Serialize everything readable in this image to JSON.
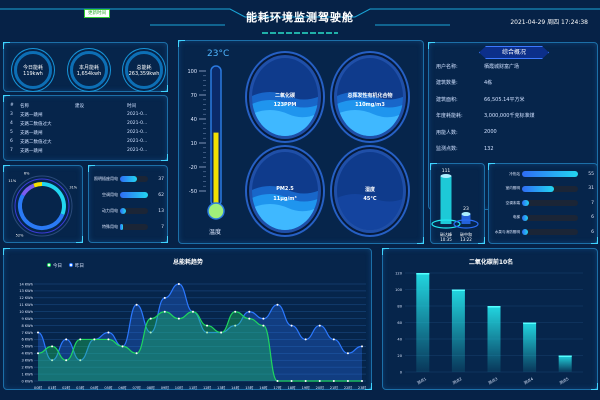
{
  "header": {
    "title": "能耗环境监测驾驶舱",
    "datetime": "2021-04-29 周四 17:24:38",
    "badge": "更新时间"
  },
  "gauges": [
    {
      "label": "今日能耗",
      "value": "119kwh"
    },
    {
      "label": "本月能耗",
      "value": "1,654kwh"
    },
    {
      "label": "总能耗",
      "value": "263,359kwh"
    }
  ],
  "alarm_table": {
    "columns": [
      "#",
      "名称",
      "建设",
      "时间"
    ],
    "rows": [
      [
        "3",
        "支路一跳闸",
        "",
        "2021-0..."
      ],
      [
        "4",
        "支路二数值过大",
        "",
        "2021-0..."
      ],
      [
        "5",
        "支路一跳闸",
        "",
        "2021-0..."
      ],
      [
        "6",
        "支路二数值过大",
        "",
        "2021-0..."
      ],
      [
        "7",
        "支路一跳闸",
        "",
        "2021-0..."
      ]
    ]
  },
  "usage": {
    "items": [
      {
        "label": "照明插座用电",
        "value": 37,
        "pct": "31%",
        "color": "#22d6f0"
      },
      {
        "label": "空调用电",
        "value": 62,
        "pct": "52%",
        "color": "#2a7af5"
      },
      {
        "label": "动力用电",
        "value": 13,
        "pct": "11%",
        "color": "#7b5cf0"
      },
      {
        "label": "特殊用电",
        "value": 7,
        "pct": "6%",
        "color": "#f5e000"
      }
    ],
    "max": 62
  },
  "environment": {
    "temperature": {
      "value": 23,
      "display": "23°C",
      "label": "温度",
      "scale": [
        "100",
        "70",
        "40",
        "10",
        "-20",
        "-50"
      ],
      "min": -50,
      "max": 100
    },
    "sensors": [
      {
        "label": "二氧化碳",
        "value": "123PPM",
        "level": 0.55
      },
      {
        "label": "总挥发性有机化合物",
        "value": "110mg/m3",
        "level": 0.55
      },
      {
        "label": "PM2.5",
        "value": "11μg/m³",
        "level": 0.55
      },
      {
        "label": "湿度",
        "value": "45°C",
        "level": 0.5
      }
    ]
  },
  "overview": {
    "title": "综合概况",
    "rows": [
      {
        "k": "用户名称:",
        "v": "栖霞城财富广场"
      },
      {
        "k": "建筑数量:",
        "v": "4栋"
      },
      {
        "k": "建筑面积:",
        "v": "66,505.14平方米"
      },
      {
        "k": "年度耗能耗:",
        "v": "3,000,000千克标准煤"
      },
      {
        "k": "用能人数:",
        "v": "2000"
      },
      {
        "k": "监测点数:",
        "v": "132"
      }
    ]
  },
  "carbon": [
    {
      "value": "111",
      "label": "碳达峰",
      "time": "10:35",
      "color": "#22e6f0"
    },
    {
      "value": "23",
      "label": "碳中和",
      "time": "13:22",
      "color": "#2a6cf5"
    }
  ],
  "subsystems": {
    "max": 55,
    "items": [
      {
        "label": "冷热站",
        "value": 55
      },
      {
        "label": "室内照明",
        "value": 31
      },
      {
        "label": "空调末端",
        "value": 7
      },
      {
        "label": "电梯",
        "value": 6
      },
      {
        "label": "水泵与消防照明",
        "value": 6
      }
    ]
  },
  "chart_data": [
    {
      "type": "line",
      "title": "总能耗趋势",
      "ylim": [
        0,
        14
      ],
      "yunit": "KWh",
      "categories": [
        "00时",
        "01时",
        "02时",
        "03时",
        "04时",
        "05时",
        "06时",
        "07时",
        "08时",
        "09时",
        "10时",
        "11时",
        "12时",
        "13时",
        "14时",
        "15时",
        "16时",
        "17时",
        "18时",
        "19时",
        "20时",
        "21时",
        "22时",
        "23时"
      ],
      "series": [
        {
          "name": "今日",
          "color": "#1fd65f",
          "values": [
            4,
            5,
            3,
            6,
            6,
            6,
            5,
            4,
            9,
            10,
            9,
            10,
            8,
            7,
            10,
            9,
            8,
            0,
            0,
            0,
            0,
            0,
            0,
            0
          ]
        },
        {
          "name": "昨日",
          "color": "#2b78ff",
          "values": [
            7,
            3,
            6,
            3,
            6,
            7,
            5,
            11,
            7,
            12,
            14,
            10,
            7,
            7,
            8,
            10,
            9,
            11,
            8,
            6,
            8,
            6,
            4,
            5
          ]
        }
      ],
      "legend": "top-left",
      "grid": true
    },
    {
      "type": "bar",
      "title": "二氧化碳前10名",
      "ylim": [
        0,
        120
      ],
      "yticks": [
        0,
        20,
        40,
        60,
        80,
        100,
        120
      ],
      "categories": [
        "测点1",
        "测点2",
        "测点3",
        "测点4",
        "测点5"
      ],
      "values": [
        120,
        100,
        80,
        60,
        20
      ],
      "color": "#22d6e0",
      "grid": true
    }
  ]
}
